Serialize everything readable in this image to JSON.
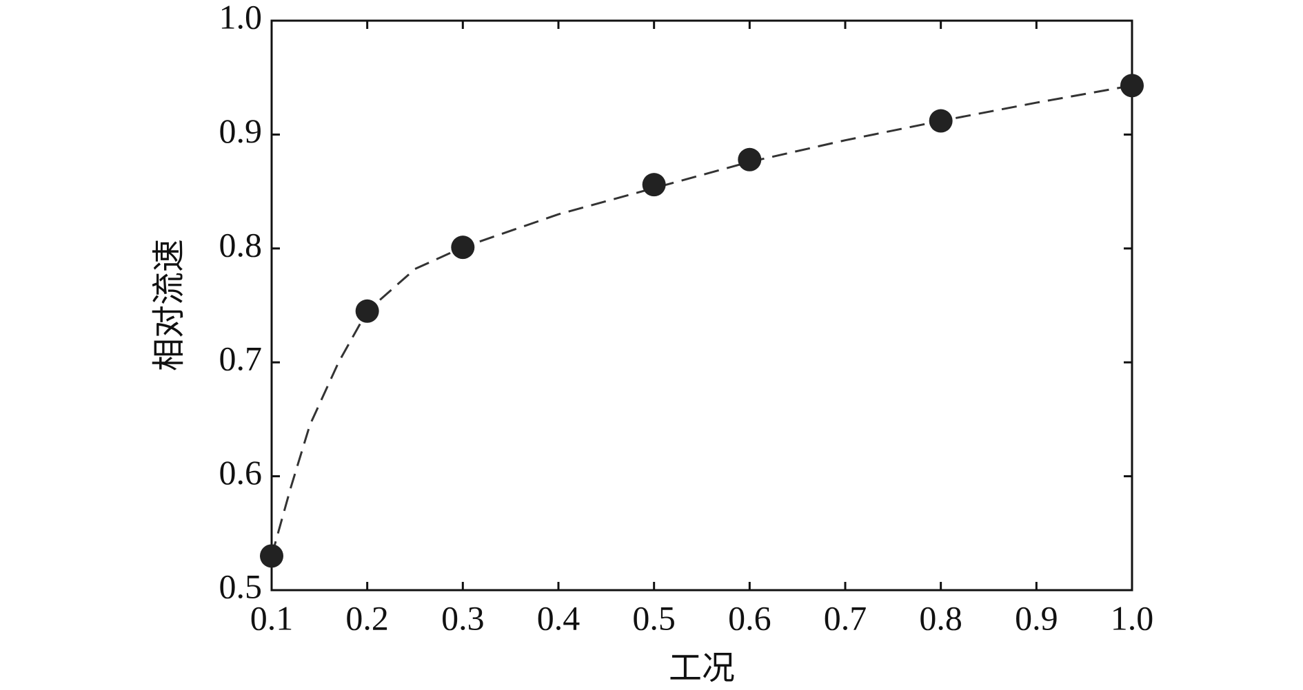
{
  "chart_data": {
    "type": "line",
    "x_label": "工况",
    "y_label": "相对流速",
    "series": [
      {
        "color": "#222222",
        "marker": "circle",
        "line": "none",
        "x": [
          0.1,
          0.2,
          0.3,
          0.5,
          0.6,
          0.8,
          1.0
        ],
        "values": [
          0.53,
          0.745,
          0.801,
          0.856,
          0.878,
          0.912,
          0.943
        ]
      },
      {
        "color": "#333333",
        "marker": "none",
        "line": "dashed",
        "x": [
          0.1,
          0.12,
          0.14,
          0.17,
          0.2,
          0.25,
          0.3,
          0.4,
          0.5,
          0.6,
          0.7,
          0.8,
          0.9,
          1.0
        ],
        "values": [
          0.53,
          0.59,
          0.645,
          0.7,
          0.745,
          0.782,
          0.801,
          0.83,
          0.853,
          0.876,
          0.895,
          0.912,
          0.928,
          0.943
        ]
      }
    ],
    "xlim": [
      0.1,
      1.0
    ],
    "xticks": [
      0.1,
      0.2,
      0.3,
      0.4,
      0.5,
      0.6,
      0.7,
      0.8,
      0.9,
      {
        "value": 1.0,
        "label": "1.0"
      }
    ],
    "ylim": [
      0.5,
      1.0
    ],
    "yticks": [
      0.5,
      0.6,
      0.7,
      0.8,
      0.9,
      {
        "value": 1.0,
        "label": "1.0"
      }
    ],
    "grid": false
  }
}
